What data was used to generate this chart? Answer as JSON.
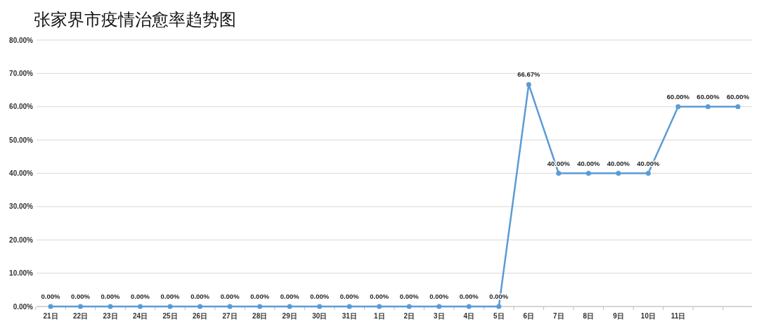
{
  "chart_data": {
    "type": "line",
    "title": "张家界市疫情治愈率趋势图",
    "categories": [
      "21日",
      "22日",
      "23日",
      "24日",
      "25日",
      "26日",
      "27日",
      "28日",
      "29日",
      "30日",
      "31日",
      "1日",
      "2日",
      "3日",
      "4日",
      "5日",
      "6日",
      "7日",
      "8日",
      "9日",
      "10日",
      "11日",
      null,
      null
    ],
    "series": [
      {
        "color": "#5b9bd5",
        "values": [
          0,
          0,
          0,
          0,
          0,
          0,
          0,
          0,
          0,
          0,
          0,
          0,
          0,
          0,
          0,
          0,
          66.67,
          40,
          40,
          40,
          40,
          60,
          60,
          60
        ],
        "value_labels": [
          "0.00%",
          "0.00%",
          "0.00%",
          "0.00%",
          "0.00%",
          "0.00%",
          "0.00%",
          "0.00%",
          "0.00%",
          "0.00%",
          "0.00%",
          "0.00%",
          "0.00%",
          "0.00%",
          "0.00%",
          "0.00%",
          "66.67%",
          "40.00%",
          "40.00%",
          "40.00%",
          "40.00%",
          "60.00%",
          "60.00%",
          "60.00%"
        ]
      }
    ],
    "ylim": [
      0,
      80
    ],
    "yticks": [
      {
        "value": 0,
        "label": "0.00%"
      },
      {
        "value": 10,
        "label": "10.00%"
      },
      {
        "value": 20,
        "label": "20.00%"
      },
      {
        "value": 30,
        "label": "30.00%"
      },
      {
        "value": 40,
        "label": "40.00%"
      },
      {
        "value": 50,
        "label": "50.00%"
      },
      {
        "value": 60,
        "label": "60.00%"
      },
      {
        "value": 70,
        "label": "70.00%"
      },
      {
        "value": 80,
        "label": "80.00%"
      }
    ],
    "grid": "y",
    "marker": "circle",
    "line_style": "solid"
  }
}
